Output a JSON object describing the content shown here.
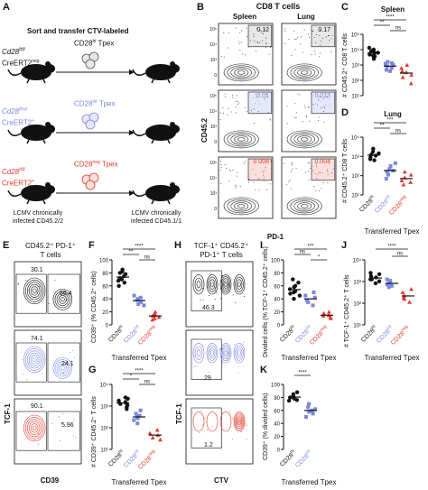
{
  "colors": {
    "black": "#111111",
    "blue": "#7b86e0",
    "red": "#e23b2e",
    "blue_fill": "#e6e9fb",
    "red_fill": "#fbe0dd",
    "gray_fill": "#e8e8e8"
  },
  "panel_labels": [
    "A",
    "B",
    "C",
    "D",
    "E",
    "F",
    "G",
    "H",
    "I",
    "J",
    "K"
  ],
  "panel_A": {
    "header": "Sort and transfer CTV-labeled",
    "donors": [
      {
        "line1": "Cd28",
        "sup1": "fl/fl",
        "line2": "CreERT2",
        "sup2": "neg",
        "cells": "CD28",
        "cells_sup": "hi",
        "cells_tail": " Tpex",
        "color": "black"
      },
      {
        "line1": "Cd28",
        "sup1": "fl/wt",
        "line2": "CreERT2",
        "sup2": "+",
        "cells": "CD28",
        "cells_sup": "int",
        "cells_tail": " Tpex",
        "color": "blue"
      },
      {
        "line1": "Cd28",
        "sup1": "fl/fl",
        "line2": "CreERT2",
        "sup2": "+",
        "cells": "CD28",
        "cells_sup": "neg",
        "cells_tail": " Tpex",
        "color": "red"
      }
    ],
    "footer_left": [
      "LCMV chronically",
      "infected CD45.2/2"
    ],
    "footer_right": [
      "LCMV chronically",
      "infected CD45.1/1"
    ]
  },
  "panel_B": {
    "header": "CD8 T cells",
    "col_titles": [
      "Spleen",
      "Lung"
    ],
    "gates": [
      [
        "0.12",
        "0.17"
      ],
      [
        "0.01",
        "0.013"
      ],
      [
        "0.008",
        "0.004"
      ]
    ],
    "y_label": "CD45.2",
    "x_label": "PD-1",
    "ticks": [
      "10⁵",
      "10⁴",
      "10³",
      "0"
    ]
  },
  "panel_C": {
    "title": "Spleen",
    "ylabel": "# CD45.2⁺ CD8 T cells",
    "yticks": [
      "10⁵",
      "10⁴",
      "10³",
      "10²",
      "10¹"
    ],
    "sig": [
      "****",
      "**",
      "ns"
    ]
  },
  "panel_D": {
    "title": "Lung",
    "ylabel": "# CD45.2⁺ CD8 T cells",
    "yticks": [
      "10⁴",
      "10³",
      "10²",
      "10¹"
    ],
    "sig": [
      "***",
      "**",
      "ns"
    ],
    "xlabel": "Transferred Tpex"
  },
  "categories": [
    {
      "label": "CD28",
      "sup": "hi"
    },
    {
      "label": "CD28",
      "sup": "int"
    },
    {
      "label": "CD28",
      "sup": "neg"
    }
  ],
  "panel_E": {
    "title_line1": "CD45.2⁺ PD-1⁺",
    "title_line2": "T cells",
    "gates": [
      [
        "30.1",
        "66.4"
      ],
      [
        "74.1",
        "24.1"
      ],
      [
        "90.1",
        "5.96"
      ]
    ],
    "y_label": "TCF-1",
    "x_label": "CD39"
  },
  "panel_F": {
    "ylabel": "CD39⁺ (% CD45.2⁺ cells)",
    "yticks": [
      "100",
      "80",
      "60",
      "40",
      "20",
      "0"
    ],
    "sig": [
      "****",
      "**",
      "ns"
    ],
    "xlabel": "Transferred Tpex"
  },
  "panel_G": {
    "ylabel": "# CD39⁺ CD45.2⁺ T cells",
    "yticks": [
      "10⁴",
      "10³",
      "10²",
      "10¹"
    ],
    "sig": [
      "****",
      "*",
      "ns"
    ],
    "xlabel": "Transferred Tpex"
  },
  "panel_H": {
    "title_line1": "TCF-1⁺ CD45.2⁺",
    "title_line2": "PD-1⁺ T cells",
    "gates": [
      "46.3",
      "29",
      "1.2"
    ],
    "y_label": "TCF-1",
    "x_label": "CTV"
  },
  "panel_I": {
    "ylabel": "Divided cells (% TCF-1⁺ CD45.2⁺ cells)",
    "yticks": [
      "100",
      "80",
      "60",
      "40",
      "20",
      "0"
    ],
    "sig": [
      "***",
      "ns",
      "*"
    ],
    "xlabel": "Transferred Tpex"
  },
  "panel_J": {
    "ylabel": "# TCF-1⁺ CD45.2⁺ T cells",
    "yticks": [
      "10⁴",
      "10³",
      "10²",
      "10¹"
    ],
    "sig": [
      "****",
      "ns"
    ],
    "xlabel": "Transferred Tpex"
  },
  "panel_K": {
    "ylabel": "CD39⁺ (% divided cells)",
    "yticks": [
      "100",
      "80",
      "60",
      "40",
      "20",
      "0"
    ],
    "sig": [
      "****"
    ],
    "xlabel": "Transferred Tpex"
  }
}
